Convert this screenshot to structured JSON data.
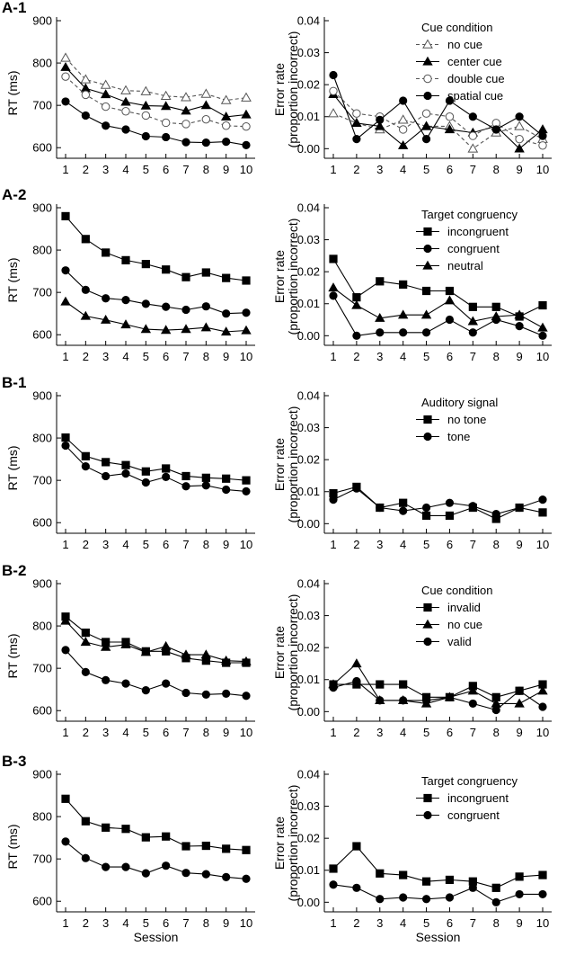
{
  "panel_labels": [
    "A-1",
    "A-2",
    "B-1",
    "B-2",
    "B-3"
  ],
  "rt_axis": {
    "label": "RT (ms)",
    "ticks": [
      "600",
      "700",
      "800",
      "900"
    ]
  },
  "err_axis": {
    "label_line1": "Error rate",
    "label_line2": "(proportion incorrect)",
    "ticks": [
      "0.00",
      "0.01",
      "0.02",
      "0.03",
      "0.04"
    ]
  },
  "session_ticks": [
    "1",
    "2",
    "3",
    "4",
    "5",
    "6",
    "7",
    "8",
    "9",
    "10"
  ],
  "xlabel": "Session",
  "chart_data": [
    {
      "type": "line",
      "panel": "A-1",
      "ylabel": "RT (ms)",
      "ylim": [
        575,
        900
      ],
      "categories": [
        1,
        2,
        3,
        4,
        5,
        6,
        7,
        8,
        9,
        10
      ],
      "series": [
        {
          "name": "no cue",
          "marker": "triangle-open",
          "dashed": true,
          "values": [
            812,
            761,
            748,
            735,
            733,
            722,
            719,
            727,
            712,
            718
          ]
        },
        {
          "name": "center cue",
          "marker": "triangle",
          "dashed": false,
          "values": [
            790,
            740,
            726,
            708,
            699,
            698,
            687,
            700,
            673,
            678
          ]
        },
        {
          "name": "double cue",
          "marker": "circle-open",
          "dashed": true,
          "values": [
            768,
            725,
            697,
            686,
            676,
            659,
            656,
            667,
            652,
            650
          ]
        },
        {
          "name": "spatial cue",
          "marker": "circle",
          "dashed": false,
          "values": [
            709,
            676,
            652,
            643,
            627,
            625,
            613,
            612,
            614,
            606
          ]
        }
      ]
    },
    {
      "type": "line",
      "panel": "A-1",
      "ylabel": "Error rate (proportion incorrect)",
      "ylim": [
        -0.003,
        0.04
      ],
      "categories": [
        1,
        2,
        3,
        4,
        5,
        6,
        7,
        8,
        9,
        10
      ],
      "legend_title": "Cue condition",
      "series": [
        {
          "name": "no cue",
          "marker": "triangle-open",
          "dashed": true,
          "values": [
            0.011,
            0.008,
            0.006,
            0.009,
            0.007,
            0.007,
            0.0,
            0.005,
            0.007,
            0.003
          ]
        },
        {
          "name": "center cue",
          "marker": "triangle",
          "dashed": false,
          "values": [
            0.017,
            0.008,
            0.007,
            0.001,
            0.007,
            0.006,
            0.005,
            0.007,
            0.0,
            0.006
          ]
        },
        {
          "name": "double cue",
          "marker": "circle-open",
          "dashed": true,
          "values": [
            0.018,
            0.011,
            0.01,
            0.006,
            0.011,
            0.01,
            0.004,
            0.008,
            0.003,
            0.001
          ]
        },
        {
          "name": "spatial cue",
          "marker": "circle",
          "dashed": false,
          "values": [
            0.023,
            0.003,
            0.009,
            0.015,
            0.003,
            0.015,
            0.01,
            0.006,
            0.01,
            0.004
          ]
        }
      ]
    },
    {
      "type": "line",
      "panel": "A-2",
      "ylabel": "RT (ms)",
      "ylim": [
        575,
        900
      ],
      "categories": [
        1,
        2,
        3,
        4,
        5,
        6,
        7,
        8,
        9,
        10
      ],
      "series": [
        {
          "name": "incongruent",
          "marker": "square",
          "dashed": false,
          "values": [
            880,
            826,
            794,
            776,
            767,
            754,
            736,
            747,
            734,
            728
          ]
        },
        {
          "name": "congruent",
          "marker": "circle",
          "dashed": false,
          "values": [
            752,
            706,
            686,
            682,
            673,
            666,
            659,
            667,
            650,
            652
          ]
        },
        {
          "name": "neutral",
          "marker": "triangle",
          "dashed": false,
          "values": [
            678,
            644,
            635,
            624,
            613,
            611,
            613,
            617,
            607,
            610
          ]
        }
      ]
    },
    {
      "type": "line",
      "panel": "A-2",
      "ylabel": "Error rate (proportion incorrect)",
      "ylim": [
        -0.003,
        0.04
      ],
      "categories": [
        1,
        2,
        3,
        4,
        5,
        6,
        7,
        8,
        9,
        10
      ],
      "legend_title": "Target congruency",
      "series": [
        {
          "name": "incongruent",
          "marker": "square",
          "dashed": false,
          "values": [
            0.024,
            0.012,
            0.017,
            0.016,
            0.014,
            0.014,
            0.009,
            0.009,
            0.006,
            0.0095
          ]
        },
        {
          "name": "congruent",
          "marker": "circle",
          "dashed": false,
          "values": [
            0.0125,
            0.0,
            0.001,
            0.001,
            0.001,
            0.005,
            0.001,
            0.005,
            0.003,
            0.0
          ]
        },
        {
          "name": "neutral",
          "marker": "triangle",
          "dashed": false,
          "values": [
            0.015,
            0.0095,
            0.0055,
            0.0065,
            0.0065,
            0.011,
            0.0045,
            0.006,
            0.0065,
            0.0025
          ]
        }
      ]
    },
    {
      "type": "line",
      "panel": "B-1",
      "ylabel": "RT (ms)",
      "ylim": [
        575,
        900
      ],
      "categories": [
        1,
        2,
        3,
        4,
        5,
        6,
        7,
        8,
        9,
        10
      ],
      "series": [
        {
          "name": "no tone",
          "marker": "square",
          "dashed": false,
          "values": [
            801,
            757,
            743,
            736,
            721,
            728,
            710,
            706,
            704,
            700
          ]
        },
        {
          "name": "tone",
          "marker": "circle",
          "dashed": false,
          "values": [
            782,
            733,
            710,
            716,
            695,
            708,
            686,
            688,
            678,
            674
          ]
        }
      ]
    },
    {
      "type": "line",
      "panel": "B-1",
      "ylabel": "Error rate (proportion incorrect)",
      "ylim": [
        -0.003,
        0.04
      ],
      "categories": [
        1,
        2,
        3,
        4,
        5,
        6,
        7,
        8,
        9,
        10
      ],
      "legend_title": "Auditory signal",
      "series": [
        {
          "name": "no tone",
          "marker": "square",
          "dashed": false,
          "values": [
            0.0095,
            0.0115,
            0.005,
            0.0065,
            0.0025,
            0.0025,
            0.005,
            0.0015,
            0.005,
            0.0035
          ]
        },
        {
          "name": "tone",
          "marker": "circle",
          "dashed": false,
          "values": [
            0.0075,
            0.011,
            0.005,
            0.004,
            0.005,
            0.0065,
            0.0055,
            0.003,
            0.005,
            0.0075
          ]
        }
      ]
    },
    {
      "type": "line",
      "panel": "B-2",
      "ylabel": "RT (ms)",
      "ylim": [
        575,
        900
      ],
      "categories": [
        1,
        2,
        3,
        4,
        5,
        6,
        7,
        8,
        9,
        10
      ],
      "series": [
        {
          "name": "invalid",
          "marker": "square",
          "dashed": false,
          "values": [
            822,
            784,
            762,
            762,
            740,
            740,
            724,
            718,
            713,
            713
          ]
        },
        {
          "name": "no cue",
          "marker": "triangle",
          "dashed": false,
          "values": [
            812,
            762,
            750,
            756,
            738,
            752,
            732,
            732,
            718,
            716
          ]
        },
        {
          "name": "valid",
          "marker": "circle",
          "dashed": false,
          "values": [
            743,
            691,
            672,
            664,
            648,
            664,
            642,
            638,
            640,
            635
          ]
        }
      ]
    },
    {
      "type": "line",
      "panel": "B-2",
      "ylabel": "Error rate (proportion incorrect)",
      "ylim": [
        -0.003,
        0.04
      ],
      "categories": [
        1,
        2,
        3,
        4,
        5,
        6,
        7,
        8,
        9,
        10
      ],
      "legend_title": "Cue condition",
      "series": [
        {
          "name": "invalid",
          "marker": "square",
          "dashed": false,
          "values": [
            0.0085,
            0.0085,
            0.0085,
            0.0085,
            0.0045,
            0.0045,
            0.008,
            0.0045,
            0.0065,
            0.0085
          ]
        },
        {
          "name": "no cue",
          "marker": "triangle",
          "dashed": false,
          "values": [
            0.0085,
            0.015,
            0.0035,
            0.0035,
            0.0025,
            0.0045,
            0.0065,
            0.0025,
            0.0025,
            0.0065
          ]
        },
        {
          "name": "valid",
          "marker": "circle",
          "dashed": false,
          "values": [
            0.0075,
            0.0095,
            0.0035,
            0.0035,
            0.0035,
            0.0045,
            0.0025,
            0.0005,
            0.0065,
            0.0015
          ]
        }
      ]
    },
    {
      "type": "line",
      "panel": "B-3",
      "ylabel": "RT (ms)",
      "ylim": [
        575,
        900
      ],
      "categories": [
        1,
        2,
        3,
        4,
        5,
        6,
        7,
        8,
        9,
        10
      ],
      "series": [
        {
          "name": "incongruent",
          "marker": "square",
          "dashed": false,
          "values": [
            842,
            789,
            774,
            771,
            751,
            753,
            730,
            731,
            724,
            721
          ]
        },
        {
          "name": "congruent",
          "marker": "circle",
          "dashed": false,
          "values": [
            741,
            702,
            681,
            681,
            666,
            684,
            667,
            664,
            657,
            653
          ]
        }
      ]
    },
    {
      "type": "line",
      "panel": "B-3",
      "ylabel": "Error rate (proportion incorrect)",
      "ylim": [
        -0.003,
        0.04
      ],
      "categories": [
        1,
        2,
        3,
        4,
        5,
        6,
        7,
        8,
        9,
        10
      ],
      "legend_title": "Target congruency",
      "series": [
        {
          "name": "incongruent",
          "marker": "square",
          "dashed": false,
          "values": [
            0.0105,
            0.0175,
            0.009,
            0.0085,
            0.0065,
            0.007,
            0.0065,
            0.0045,
            0.008,
            0.0085
          ]
        },
        {
          "name": "congruent",
          "marker": "circle",
          "dashed": false,
          "values": [
            0.0055,
            0.0045,
            0.001,
            0.0015,
            0.001,
            0.0015,
            0.0045,
            0.0,
            0.0025,
            0.0025
          ]
        }
      ]
    }
  ]
}
